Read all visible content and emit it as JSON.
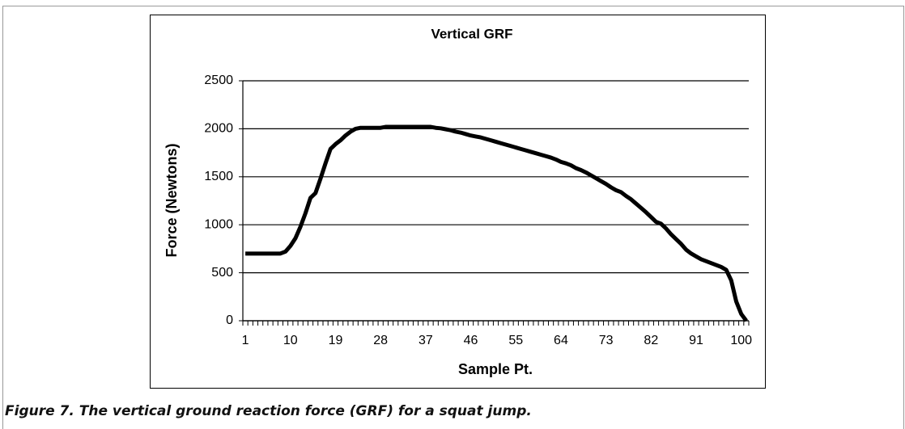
{
  "chart_data": {
    "type": "line",
    "title": "Vertical GRF",
    "x_label": "Sample Pt.",
    "y_label": "Force (Newtons)",
    "caption": "Figure 7. The vertical ground reaction force (GRF) for a squat jump.",
    "categories": [
      "1",
      null,
      null,
      null,
      null,
      null,
      null,
      null,
      null,
      "10",
      null,
      null,
      null,
      null,
      null,
      null,
      null,
      null,
      "19",
      null,
      null,
      null,
      null,
      null,
      null,
      null,
      null,
      "28",
      null,
      null,
      null,
      null,
      null,
      null,
      null,
      null,
      "37",
      null,
      null,
      null,
      null,
      null,
      null,
      null,
      null,
      "46",
      null,
      null,
      null,
      null,
      null,
      null,
      null,
      null,
      "55",
      null,
      null,
      null,
      null,
      null,
      null,
      null,
      null,
      "64",
      null,
      null,
      null,
      null,
      null,
      null,
      null,
      null,
      "73",
      null,
      null,
      null,
      null,
      null,
      null,
      null,
      null,
      "82",
      null,
      null,
      null,
      null,
      null,
      null,
      null,
      null,
      "91",
      null,
      null,
      null,
      null,
      null,
      null,
      null,
      null,
      "100",
      null
    ],
    "series": [
      {
        "color": "#000000",
        "values": [
          700,
          700,
          700,
          700,
          700,
          700,
          700,
          700,
          720,
          780,
          860,
          980,
          1120,
          1280,
          1330,
          1480,
          1640,
          1790,
          1840,
          1880,
          1930,
          1970,
          2000,
          2010,
          2010,
          2010,
          2010,
          2010,
          2020,
          2020,
          2020,
          2020,
          2020,
          2020,
          2020,
          2020,
          2020,
          2020,
          2010,
          2005,
          1995,
          1985,
          1970,
          1960,
          1945,
          1930,
          1920,
          1910,
          1895,
          1880,
          1865,
          1850,
          1835,
          1820,
          1805,
          1790,
          1775,
          1760,
          1745,
          1730,
          1715,
          1700,
          1680,
          1655,
          1640,
          1620,
          1590,
          1570,
          1545,
          1515,
          1485,
          1455,
          1425,
          1390,
          1360,
          1340,
          1300,
          1265,
          1220,
          1175,
          1130,
          1080,
          1030,
          1010,
          960,
          900,
          850,
          800,
          740,
          700,
          670,
          640,
          620,
          600,
          580,
          560,
          530,
          420,
          200,
          70,
          0
        ]
      }
    ],
    "ylim": [
      0,
      2500
    ],
    "yticks": [
      0,
      500,
      1000,
      1500,
      2000,
      2500
    ],
    "grid": true
  }
}
